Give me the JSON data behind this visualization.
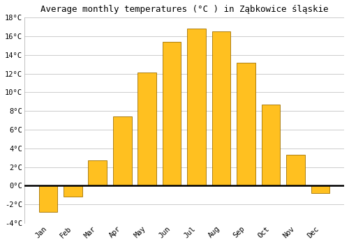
{
  "title": "Average monthly temperatures (°C ) in Ząbkowice śląskie",
  "months": [
    "Jan",
    "Feb",
    "Mar",
    "Apr",
    "May",
    "Jun",
    "Jul",
    "Aug",
    "Sep",
    "Oct",
    "Nov",
    "Dec"
  ],
  "values": [
    -2.8,
    -1.2,
    2.7,
    7.4,
    12.1,
    15.4,
    16.8,
    16.5,
    13.2,
    8.7,
    3.3,
    -0.8
  ],
  "bar_color": "#FFC020",
  "bar_edge_color": "#A07000",
  "background_color": "#ffffff",
  "grid_color": "#cccccc",
  "ylim": [
    -4,
    18
  ],
  "yticks": [
    -4,
    -2,
    0,
    2,
    4,
    6,
    8,
    10,
    12,
    14,
    16,
    18
  ],
  "title_fontsize": 9,
  "tick_fontsize": 7.5,
  "figsize": [
    5.0,
    3.5
  ],
  "dpi": 100
}
